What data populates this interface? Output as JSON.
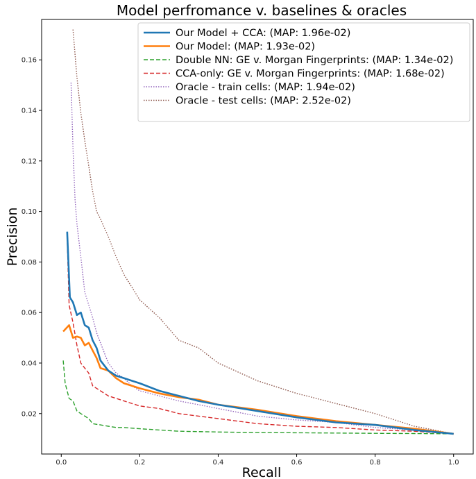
{
  "chart_data": {
    "type": "line",
    "title": "Model perfromance v. baselines & oracles",
    "xlabel": "Recall",
    "ylabel": "Precision",
    "xlim": [
      -0.05,
      1.05
    ],
    "ylim": [
      0.004,
      0.176
    ],
    "xticks": [
      0.0,
      0.2,
      0.4,
      0.6,
      0.8,
      1.0
    ],
    "xtick_labels": [
      "0.0",
      "0.2",
      "0.4",
      "0.6",
      "0.8",
      "1.0"
    ],
    "yticks": [
      0.02,
      0.04,
      0.06,
      0.08,
      0.1,
      0.12,
      0.14,
      0.16
    ],
    "ytick_labels": [
      "0.02",
      "0.04",
      "0.06",
      "0.08",
      "0.10",
      "0.12",
      "0.14",
      "0.16"
    ],
    "grid": false,
    "legend_position": "top-right",
    "series": [
      {
        "name": "Our Model + CCA: (MAP: 1.96e-02)",
        "color": "#1f77b4",
        "style": "solid",
        "width": 2.6,
        "x": [
          0.015,
          0.022,
          0.03,
          0.04,
          0.05,
          0.06,
          0.07,
          0.08,
          0.09,
          0.1,
          0.12,
          0.14,
          0.16,
          0.18,
          0.2,
          0.25,
          0.3,
          0.35,
          0.4,
          0.5,
          0.6,
          0.7,
          0.8,
          0.9,
          1.0
        ],
        "y": [
          0.092,
          0.066,
          0.064,
          0.059,
          0.06,
          0.055,
          0.054,
          0.049,
          0.046,
          0.041,
          0.037,
          0.035,
          0.034,
          0.033,
          0.032,
          0.029,
          0.027,
          0.025,
          0.0235,
          0.021,
          0.0185,
          0.0165,
          0.0155,
          0.0135,
          0.012
        ]
      },
      {
        "name": "Our Model: (MAP: 1.93e-02)",
        "color": "#ff7f0e",
        "style": "solid",
        "width": 2.6,
        "x": [
          0.005,
          0.02,
          0.03,
          0.04,
          0.05,
          0.06,
          0.07,
          0.08,
          0.09,
          0.1,
          0.12,
          0.14,
          0.16,
          0.18,
          0.2,
          0.25,
          0.3,
          0.35,
          0.4,
          0.5,
          0.6,
          0.7,
          0.8,
          0.9,
          1.0
        ],
        "y": [
          0.0525,
          0.055,
          0.05,
          0.0505,
          0.05,
          0.047,
          0.048,
          0.045,
          0.042,
          0.038,
          0.037,
          0.034,
          0.032,
          0.031,
          0.03,
          0.028,
          0.0265,
          0.0255,
          0.0235,
          0.0215,
          0.019,
          0.017,
          0.0155,
          0.014,
          0.012
        ]
      },
      {
        "name": "Double NN: GE v. Morgan Fingerprints: (MAP: 1.34e-02)",
        "color": "#2ca02c",
        "style": "dashed",
        "width": 1.4,
        "x": [
          0.005,
          0.01,
          0.02,
          0.03,
          0.04,
          0.05,
          0.06,
          0.07,
          0.08,
          0.1,
          0.12,
          0.14,
          0.16,
          0.2,
          0.3,
          0.4,
          0.5,
          0.6,
          0.7,
          0.8,
          0.9,
          1.0
        ],
        "y": [
          0.041,
          0.032,
          0.026,
          0.025,
          0.021,
          0.02,
          0.019,
          0.018,
          0.016,
          0.0155,
          0.015,
          0.0145,
          0.0145,
          0.014,
          0.013,
          0.0127,
          0.0125,
          0.0124,
          0.0123,
          0.0122,
          0.0121,
          0.012
        ]
      },
      {
        "name": "CCA-only: GE v. Morgan Fingerprints: (MAP: 1.68e-02)",
        "color": "#d62728",
        "style": "dashed",
        "width": 1.4,
        "x": [
          0.015,
          0.02,
          0.03,
          0.04,
          0.05,
          0.06,
          0.07,
          0.08,
          0.09,
          0.1,
          0.12,
          0.14,
          0.16,
          0.2,
          0.25,
          0.3,
          0.4,
          0.5,
          0.6,
          0.7,
          0.8,
          0.9,
          1.0
        ],
        "y": [
          0.09,
          0.063,
          0.056,
          0.047,
          0.04,
          0.038,
          0.036,
          0.031,
          0.03,
          0.029,
          0.027,
          0.026,
          0.025,
          0.023,
          0.022,
          0.02,
          0.018,
          0.016,
          0.015,
          0.0145,
          0.0135,
          0.013,
          0.012
        ]
      },
      {
        "name": "Oracle - train cells: (MAP: 1.94e-02)",
        "color": "#9467bd",
        "style": "dotted",
        "width": 1.4,
        "x": [
          0.025,
          0.03,
          0.035,
          0.04,
          0.05,
          0.06,
          0.07,
          0.08,
          0.09,
          0.1,
          0.12,
          0.14,
          0.16,
          0.18,
          0.2,
          0.25,
          0.3,
          0.35,
          0.4,
          0.5,
          0.6,
          0.7,
          0.8,
          0.9,
          1.0
        ],
        "y": [
          0.151,
          0.125,
          0.105,
          0.095,
          0.082,
          0.068,
          0.063,
          0.058,
          0.052,
          0.048,
          0.04,
          0.036,
          0.034,
          0.031,
          0.029,
          0.027,
          0.025,
          0.0235,
          0.022,
          0.019,
          0.0175,
          0.0165,
          0.0145,
          0.0135,
          0.012
        ]
      },
      {
        "name": "Oracle - test cells: (MAP: 2.52e-02)",
        "color": "#8c564b",
        "style": "dotted",
        "width": 1.4,
        "x": [
          0.03,
          0.04,
          0.05,
          0.06,
          0.07,
          0.08,
          0.09,
          0.1,
          0.12,
          0.14,
          0.16,
          0.18,
          0.2,
          0.25,
          0.3,
          0.35,
          0.4,
          0.5,
          0.6,
          0.7,
          0.8,
          0.9,
          1.0
        ],
        "y": [
          0.172,
          0.153,
          0.139,
          0.128,
          0.118,
          0.108,
          0.1,
          0.097,
          0.09,
          0.082,
          0.075,
          0.07,
          0.065,
          0.058,
          0.049,
          0.046,
          0.04,
          0.033,
          0.028,
          0.024,
          0.02,
          0.015,
          0.012
        ]
      }
    ]
  }
}
